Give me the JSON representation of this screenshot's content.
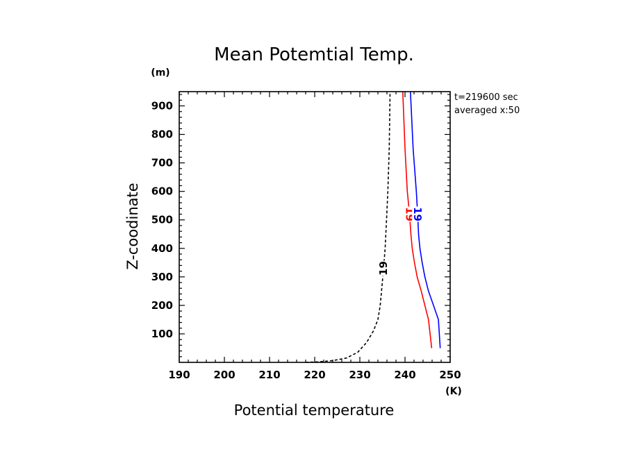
{
  "chart_data": {
    "type": "line",
    "title": "Mean Potemtial Temp.",
    "xlabel": "Potential temperature",
    "ylabel": "Z-coodinate",
    "x_unit": "(K)",
    "y_unit": "(m)",
    "xlim": [
      190,
      250
    ],
    "ylim": [
      0,
      950
    ],
    "xticks": [
      190,
      200,
      210,
      220,
      230,
      240,
      250
    ],
    "yticks": [
      100,
      200,
      300,
      400,
      500,
      600,
      700,
      800,
      900
    ],
    "grid": false,
    "annotations": [
      "t=219600 sec",
      "averaged  x:50"
    ],
    "series": [
      {
        "label": "19",
        "color": "#000000",
        "style": "dashed",
        "x": [
          218,
          221,
          224,
          227,
          229.5,
          231.5,
          233,
          234,
          234.5,
          234.8,
          235.2,
          235.6,
          235.9,
          236.2,
          236.5,
          236.7
        ],
        "y": [
          0,
          2,
          6,
          15,
          35,
          70,
          110,
          150,
          200,
          250,
          320,
          400,
          500,
          600,
          750,
          950
        ]
      },
      {
        "label": "19",
        "color": "#ff0000",
        "style": "solid",
        "x": [
          245.9,
          245.2,
          244.4,
          243.6,
          242.7,
          242.1,
          241.6,
          241.3,
          241.0,
          240.5,
          240.0,
          239.5
        ],
        "y": [
          50,
          150,
          200,
          250,
          300,
          350,
          400,
          450,
          520,
          600,
          750,
          950
        ]
      },
      {
        "label": "19",
        "color": "#0000ff",
        "style": "solid",
        "x": [
          247.8,
          247.4,
          246.3,
          245.2,
          244.4,
          243.8,
          243.3,
          243.0,
          242.8,
          242.5,
          241.8,
          241.2
        ],
        "y": [
          50,
          150,
          200,
          250,
          300,
          350,
          400,
          450,
          520,
          600,
          750,
          950
        ]
      }
    ]
  }
}
